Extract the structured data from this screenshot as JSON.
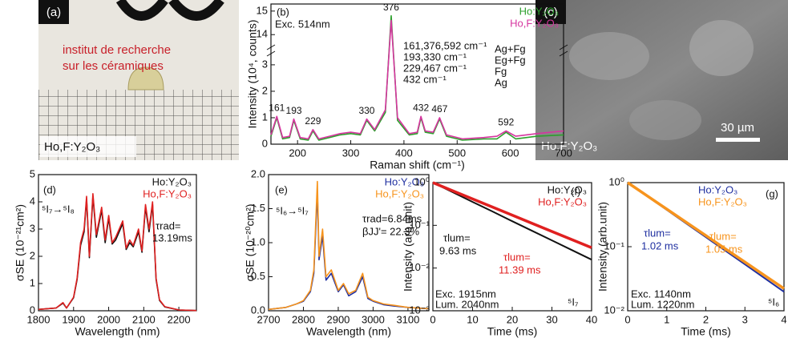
{
  "panels": {
    "a": {
      "label": "(a)",
      "text_lines": [
        "institut de recherche",
        "sur les céramiques"
      ],
      "caption": "Ho,F:Y₂O₃"
    },
    "c": {
      "label": "(c)",
      "scale_bar": "30 µm",
      "caption": "Ho,F:Y₂O₃"
    }
  },
  "chart_data": [
    {
      "type": "line",
      "xlabel": "Raman shift (cm⁻¹)",
      "ylabel": "Intensity (10⁴, counts)",
      "xlim": [
        150,
        700
      ],
      "ylim": [
        0,
        15.3
      ],
      "ybreak": [
        3.3,
        13.6
      ],
      "xticks": [
        200,
        300,
        400,
        500,
        600,
        700
      ],
      "yticks": [
        0,
        1,
        2,
        3,
        14,
        15
      ],
      "legend": "upper right",
      "x": [
        150,
        161,
        172,
        185,
        193,
        205,
        220,
        229,
        240,
        260,
        280,
        300,
        318,
        330,
        345,
        365,
        376,
        388,
        410,
        425,
        432,
        440,
        455,
        467,
        480,
        510,
        550,
        575,
        592,
        610,
        650,
        700
      ],
      "series": [
        {
          "name": "Ho:Y₂O₃",
          "color": "#2ca02c",
          "values": [
            0.3,
            1.0,
            0.2,
            0.25,
            0.9,
            0.2,
            0.15,
            0.5,
            0.15,
            0.25,
            0.35,
            0.4,
            0.35,
            0.9,
            0.5,
            1.2,
            14.8,
            0.9,
            0.35,
            0.4,
            1.0,
            0.45,
            0.4,
            0.95,
            0.3,
            0.15,
            0.2,
            0.2,
            0.45,
            0.2,
            0.3,
            0.35
          ]
        },
        {
          "name": "Ho,F:Y₂O₃",
          "color": "#d6359f",
          "values": [
            0.35,
            1.05,
            0.25,
            0.3,
            0.95,
            0.25,
            0.2,
            0.55,
            0.2,
            0.3,
            0.4,
            0.45,
            0.4,
            0.95,
            0.55,
            1.3,
            14.6,
            1.0,
            0.4,
            0.45,
            1.05,
            0.5,
            0.45,
            1.0,
            0.35,
            0.2,
            0.25,
            0.3,
            0.5,
            0.3,
            0.4,
            0.5
          ]
        }
      ],
      "peak_labels": [
        161,
        193,
        229,
        330,
        376,
        432,
        467,
        592
      ],
      "annotations": [
        "(b)",
        "Exc. 514nm",
        "161,376,592 cm⁻¹",
        "193,330 cm⁻¹",
        "229,467 cm⁻¹",
        "432 cm⁻¹",
        "Ag+Fg",
        "Eg+Fg",
        "Fg",
        "Ag"
      ]
    },
    {
      "type": "line",
      "xlabel": "Wavelength (nm)",
      "ylabel": "σSE (10⁻²¹cm²)",
      "xlim": [
        1800,
        2250
      ],
      "ylim": [
        0,
        5
      ],
      "xticks": [
        1800,
        1900,
        2000,
        2100,
        2200
      ],
      "yticks": [
        0,
        1,
        2,
        3,
        4,
        5
      ],
      "legend": "upper right",
      "x": [
        1800,
        1850,
        1870,
        1880,
        1900,
        1910,
        1920,
        1930,
        1937,
        1945,
        1955,
        1965,
        1980,
        1990,
        2000,
        2010,
        2020,
        2040,
        2050,
        2060,
        2070,
        2085,
        2095,
        2105,
        2115,
        2125,
        2135,
        2145,
        2160,
        2200,
        2250
      ],
      "series": [
        {
          "name": "Ho:Y₂O₃",
          "color": "#111111",
          "values": [
            0.05,
            0.1,
            0.28,
            0.1,
            0.48,
            1.15,
            2.4,
            2.9,
            4.1,
            1.95,
            4.2,
            2.7,
            3.7,
            2.5,
            3.4,
            2.45,
            2.6,
            3.2,
            2.25,
            2.5,
            2.35,
            2.9,
            2.15,
            3.8,
            2.9,
            3.9,
            1.15,
            0.38,
            0.14,
            0.03,
            0.01
          ]
        },
        {
          "name": "Ho,F:Y₂O₃",
          "color": "#e02020",
          "values": [
            0.05,
            0.1,
            0.3,
            0.1,
            0.5,
            1.2,
            2.5,
            3.0,
            4.2,
            2.0,
            4.3,
            2.8,
            3.8,
            2.6,
            3.5,
            2.5,
            2.7,
            3.3,
            2.3,
            2.6,
            2.4,
            3.0,
            2.2,
            3.9,
            3.0,
            4.0,
            1.2,
            0.4,
            0.15,
            0.03,
            0.01
          ]
        }
      ],
      "annotations": [
        "(d)",
        "⁵I₇→⁵I₈",
        "τrad=",
        "13.19ms"
      ]
    },
    {
      "type": "line",
      "xlabel": "Wavelength (nm)",
      "ylabel": "σSE (10⁻²⁰cm²)",
      "xlim": [
        2700,
        3160
      ],
      "ylim": [
        0,
        2
      ],
      "xticks": [
        2700,
        2800,
        2900,
        3000,
        3100
      ],
      "yticks": [
        {
          "value": 0,
          "label": "0.0"
        },
        {
          "value": 0.5,
          "label": "0.5"
        },
        {
          "value": 1,
          "label": "1.0"
        },
        {
          "value": 1.5,
          "label": "1.5"
        },
        {
          "value": 2,
          "label": "2.0"
        }
      ],
      "legend": "upper right",
      "x": [
        2700,
        2750,
        2780,
        2800,
        2820,
        2830,
        2840,
        2845,
        2855,
        2865,
        2880,
        2900,
        2915,
        2930,
        2950,
        2970,
        2985,
        3000,
        3030,
        3060,
        3100,
        3160
      ],
      "series": [
        {
          "name": "Ho:Y₂O₃",
          "color": "#1f2fa0",
          "values": [
            0.02,
            0.05,
            0.1,
            0.14,
            0.28,
            0.55,
            1.75,
            0.75,
            1.1,
            0.45,
            0.55,
            0.28,
            0.38,
            0.22,
            0.28,
            0.5,
            0.18,
            0.14,
            0.09,
            0.07,
            0.05,
            0.03
          ]
        },
        {
          "name": "Ho,F:Y₂O₃",
          "color": "#f7941d",
          "values": [
            0.02,
            0.05,
            0.1,
            0.15,
            0.3,
            0.6,
            1.9,
            0.8,
            1.2,
            0.5,
            0.6,
            0.3,
            0.4,
            0.25,
            0.3,
            0.55,
            0.2,
            0.15,
            0.1,
            0.08,
            0.05,
            0.03
          ]
        }
      ],
      "annotations": [
        "(e)",
        "⁵I₆→⁵I₇",
        "τrad=6.84ms",
        "βJJ'= 22.3%"
      ]
    },
    {
      "type": "line",
      "xlabel": "Time (ms)",
      "ylabel": "Intensity (arb.unit)",
      "yscale": "log",
      "xlim": [
        0,
        40
      ],
      "ylim": [
        0.001,
        1
      ],
      "xticks": [
        0,
        10,
        20,
        30,
        40
      ],
      "yticks": [
        {
          "value": 0.001,
          "label": "10⁻³"
        },
        {
          "value": 0.01,
          "label": "10⁻²"
        },
        {
          "value": 0.1,
          "label": "10⁻¹"
        },
        {
          "value": 1,
          "label": "10⁰"
        }
      ],
      "legend": "upper right",
      "x": [
        0,
        5,
        10,
        15,
        20,
        25,
        30,
        35,
        40
      ],
      "series": [
        {
          "name": "Ho:Y₂O₃",
          "color": "#111111",
          "values": [
            1,
            0.595,
            0.354,
            0.211,
            0.125,
            0.0745,
            0.0444,
            0.0264,
            0.0157
          ]
        },
        {
          "name": "Ho,F:Y₂O₃",
          "color": "#e02020",
          "values": [
            1,
            0.645,
            0.415,
            0.268,
            0.173,
            0.111,
            0.0719,
            0.0464,
            0.0299
          ]
        }
      ],
      "annotations": [
        "(f)",
        "τlum=",
        "9.63 ms",
        "τlum=",
        "11.39 ms",
        "Exc. 1915nm",
        "Lum. 2040nm",
        "⁵I₇"
      ]
    },
    {
      "type": "line",
      "xlabel": "Time (ms)",
      "ylabel": "Intensity (arb.unit)",
      "yscale": "log",
      "xlim": [
        0,
        4
      ],
      "ylim": [
        0.01,
        1
      ],
      "xticks": [
        0,
        1,
        2,
        3,
        4
      ],
      "yticks": [
        {
          "value": 0.01,
          "label": "10⁻²"
        },
        {
          "value": 0.1,
          "label": "10⁻¹"
        },
        {
          "value": 1,
          "label": "10⁰"
        }
      ],
      "legend": "upper center",
      "x": [
        0,
        0.5,
        1,
        1.5,
        2,
        2.5,
        3,
        3.5,
        4
      ],
      "series": [
        {
          "name": "Ho:Y₂O₃",
          "color": "#1f2fa0",
          "values": [
            1,
            0.613,
            0.375,
            0.23,
            0.141,
            0.0863,
            0.0529,
            0.0324,
            0.0198
          ]
        },
        {
          "name": "Ho,F:Y₂O₃",
          "color": "#f7941d",
          "values": [
            1,
            0.621,
            0.386,
            0.24,
            0.149,
            0.0925,
            0.0575,
            0.0357,
            0.0222
          ]
        }
      ],
      "annotations": [
        "(g)",
        "τlum=",
        "1.02 ms",
        "τlum=",
        "1.05 ms",
        "Exc. 1140nm",
        "Lum. 1220nm",
        "⁵I₆"
      ]
    }
  ]
}
